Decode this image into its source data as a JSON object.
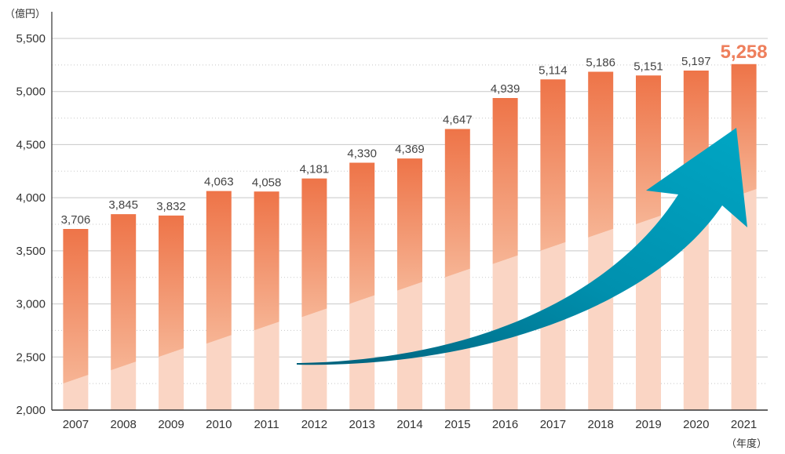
{
  "chart_data": {
    "type": "bar",
    "y_unit": "（億円）",
    "x_unit": "（年度）",
    "categories": [
      "2007",
      "2008",
      "2009",
      "2010",
      "2011",
      "2012",
      "2013",
      "2014",
      "2015",
      "2016",
      "2017",
      "2018",
      "2019",
      "2020",
      "2021"
    ],
    "values": [
      3706,
      3845,
      3832,
      4063,
      4058,
      4181,
      4330,
      4369,
      4647,
      4939,
      5114,
      5186,
      5151,
      5197,
      5258
    ],
    "value_labels": [
      "3,706",
      "3,845",
      "3,832",
      "4,063",
      "4,058",
      "4,181",
      "4,330",
      "4,369",
      "4,647",
      "4,939",
      "5,114",
      "5,186",
      "5,151",
      "5,197",
      "5,258"
    ],
    "highlight_index": 14,
    "ylim": [
      2000,
      5500
    ],
    "yticks": [
      2000,
      2500,
      3000,
      3500,
      4000,
      4500,
      5000,
      5500
    ],
    "ytick_labels": [
      "2,000",
      "2,500",
      "3,000",
      "3,500",
      "4,000",
      "4,500",
      "5,000",
      "5,500"
    ],
    "grid": true,
    "legend": "none",
    "colors": {
      "bar_top": "#ee7448",
      "bar_mid": "#f4a885",
      "bar_light": "#fad5c4",
      "highlight_label": "#ee7f5c",
      "arrow": "#0096b4",
      "arrow_dark": "#006f88",
      "grid": "#c8c8c8"
    }
  }
}
